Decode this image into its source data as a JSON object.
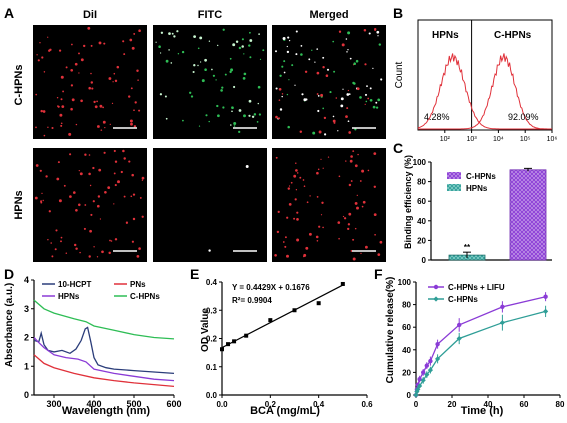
{
  "panel_letters": {
    "A": "A",
    "B": "B",
    "C": "C",
    "D": "D",
    "E": "E",
    "F": "F"
  },
  "microscopy": {
    "columns": [
      "DiI",
      "FITC",
      "Merged"
    ],
    "rows": [
      "C-HPNs",
      "HPNs"
    ]
  },
  "colors": {
    "red": "#e0313a",
    "green": "#2ebd55",
    "purple": "#8a3bd6",
    "teal": "#2f9e97",
    "black": "#1a1a1a",
    "blue": "#2b3d7a"
  },
  "chart_data": [
    {
      "id": "B",
      "type": "area",
      "ylabel": "Count",
      "xlim_log10": [
        1,
        6
      ],
      "tick_labels": [
        "10²",
        "10³",
        "10⁴",
        "10⁵",
        "10⁶"
      ],
      "gate_log10": 3,
      "series": [
        {
          "name": "HPNs",
          "peak_log10": 2.3,
          "sd": 0.45,
          "gated_percent": "4.28%"
        },
        {
          "name": "C-HPNs",
          "peak_log10": 4.2,
          "sd": 0.42,
          "gated_percent": "92.09%"
        }
      ]
    },
    {
      "id": "C",
      "type": "bar",
      "ylabel": "Binding efficiency (%)",
      "ylim": [
        0,
        100
      ],
      "yticks": [
        0,
        20,
        40,
        60,
        80,
        100
      ],
      "categories": [
        "HPNs",
        "C-HPNs"
      ],
      "legend": [
        "C-HPNs",
        "HPNs"
      ],
      "values": [
        5,
        92
      ],
      "errors": [
        3,
        1.5
      ],
      "annotation": "**"
    },
    {
      "id": "D",
      "type": "line",
      "xlabel": "Wavelength (nm)",
      "ylabel": "Absorbance (a.u.)",
      "xlim": [
        250,
        600
      ],
      "ylim": [
        0,
        4
      ],
      "xticks": [
        300,
        400,
        500,
        600
      ],
      "yticks": [
        0,
        1,
        2,
        3,
        4
      ],
      "legend_placement": "top",
      "series": [
        {
          "name": "10-HCPT",
          "color": "#2b3d7a",
          "x": [
            250,
            262,
            268,
            275,
            285,
            300,
            320,
            340,
            355,
            368,
            378,
            384,
            392,
            400,
            410,
            430,
            450,
            500,
            550,
            600
          ],
          "y": [
            1.9,
            1.85,
            2.15,
            1.75,
            1.55,
            1.5,
            1.55,
            1.45,
            1.6,
            1.9,
            2.3,
            2.35,
            1.85,
            1.3,
            1.05,
            0.95,
            0.9,
            0.85,
            0.8,
            0.75
          ]
        },
        {
          "name": "PNs",
          "color": "#e0313a",
          "x": [
            250,
            275,
            300,
            350,
            400,
            450,
            500,
            550,
            600
          ],
          "y": [
            1.4,
            1.1,
            0.95,
            0.75,
            0.6,
            0.5,
            0.42,
            0.36,
            0.3
          ]
        },
        {
          "name": "HPNs",
          "color": "#8a3bd6",
          "x": [
            250,
            260,
            275,
            300,
            330,
            360,
            380,
            400,
            450,
            500,
            550,
            600
          ],
          "y": [
            2.0,
            1.85,
            1.65,
            1.4,
            1.3,
            1.25,
            1.15,
            0.9,
            0.75,
            0.65,
            0.55,
            0.5
          ]
        },
        {
          "name": "C-HPNs",
          "color": "#2ebd55",
          "x": [
            250,
            275,
            300,
            350,
            380,
            400,
            450,
            500,
            550,
            600
          ],
          "y": [
            3.3,
            3.0,
            2.85,
            2.65,
            2.55,
            2.4,
            2.25,
            2.1,
            2.0,
            1.95
          ]
        }
      ]
    },
    {
      "id": "E",
      "type": "scatter",
      "xlabel": "BCA (mg/mL)",
      "ylabel": "OD Value",
      "xlim": [
        0,
        0.6
      ],
      "ylim": [
        0,
        0.4
      ],
      "xticks": [
        0.0,
        0.2,
        0.4,
        0.6
      ],
      "yticks": [
        0.0,
        0.1,
        0.2,
        0.3,
        0.4
      ],
      "equation": "Y = 0.4429X + 0.1676",
      "r2": "R²= 0.9904",
      "fit": {
        "slope": 0.4429,
        "intercept": 0.1676
      },
      "points": {
        "x": [
          0.0,
          0.025,
          0.05,
          0.1,
          0.2,
          0.3,
          0.4,
          0.5
        ],
        "y": [
          0.162,
          0.18,
          0.19,
          0.21,
          0.265,
          0.3,
          0.325,
          0.393
        ]
      }
    },
    {
      "id": "F",
      "type": "line",
      "xlabel": "Time (h)",
      "ylabel": "Cumulative release(%)",
      "xlim": [
        0,
        80
      ],
      "ylim": [
        0,
        100
      ],
      "xticks": [
        0,
        20,
        40,
        60,
        80
      ],
      "yticks": [
        0,
        20,
        40,
        60,
        80,
        100
      ],
      "legend_placement": "top-left",
      "series": [
        {
          "name": "C-HPNs + LIFU",
          "color": "#8a3bd6",
          "x": [
            0,
            0.5,
            1,
            2,
            4,
            6,
            8,
            12,
            24,
            48,
            72
          ],
          "y": [
            0,
            5,
            9,
            14,
            20,
            26,
            30,
            45,
            62,
            78,
            87
          ],
          "err": [
            0,
            1,
            2,
            3,
            3,
            3,
            4,
            4,
            6,
            5,
            4
          ]
        },
        {
          "name": "C-HPNs",
          "color": "#2f9e97",
          "x": [
            0,
            0.5,
            1,
            2,
            4,
            6,
            8,
            12,
            24,
            48,
            72
          ],
          "y": [
            0,
            3,
            5,
            8,
            13,
            18,
            22,
            32,
            50,
            64,
            74
          ],
          "err": [
            0,
            1,
            2,
            2,
            3,
            3,
            3,
            4,
            5,
            7,
            5
          ]
        }
      ]
    }
  ]
}
